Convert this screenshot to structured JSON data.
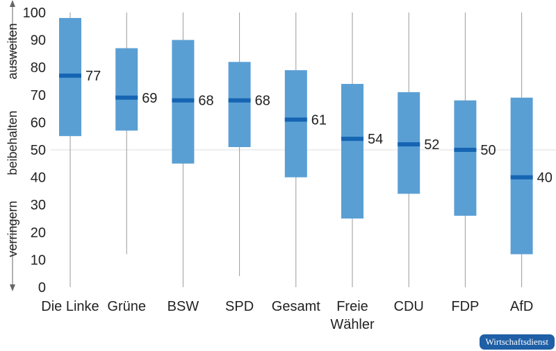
{
  "chart_data": {
    "type": "boxplot",
    "ylim": [
      0,
      100
    ],
    "yticks": [
      0,
      10,
      20,
      30,
      40,
      50,
      60,
      70,
      80,
      90,
      100
    ],
    "y_side_labels": [
      "ausweiten",
      "beibehalten",
      "verringern"
    ],
    "reference_line": 50,
    "categories": [
      {
        "label": [
          "Die Linke"
        ],
        "min": 0,
        "q1": 55,
        "median": 77,
        "q3": 98,
        "max": 100
      },
      {
        "label": [
          "Grüne"
        ],
        "min": 12,
        "q1": 57,
        "median": 69,
        "q3": 87,
        "max": 100
      },
      {
        "label": [
          "BSW"
        ],
        "min": 0,
        "q1": 45,
        "median": 68,
        "q3": 90,
        "max": 100
      },
      {
        "label": [
          "SPD"
        ],
        "min": 4,
        "q1": 51,
        "median": 68,
        "q3": 82,
        "max": 100
      },
      {
        "label": [
          "Gesamt"
        ],
        "min": 0,
        "q1": 40,
        "median": 61,
        "q3": 79,
        "max": 100
      },
      {
        "label": [
          "Freie",
          "Wähler"
        ],
        "min": 0,
        "q1": 25,
        "median": 54,
        "q3": 74,
        "max": 100
      },
      {
        "label": [
          "CDU"
        ],
        "min": 0,
        "q1": 34,
        "median": 52,
        "q3": 71,
        "max": 100
      },
      {
        "label": [
          "FDP"
        ],
        "min": 0,
        "q1": 26,
        "median": 50,
        "q3": 68,
        "max": 100
      },
      {
        "label": [
          "AfD"
        ],
        "min": 0,
        "q1": 12,
        "median": 40,
        "q3": 69,
        "max": 100
      }
    ],
    "colors": {
      "box": "#5a9fd4",
      "median": "#1565b3",
      "whisker": "#9a9a9a",
      "reference": "#dddddd"
    }
  },
  "source": "Wirtschaftsdienst"
}
